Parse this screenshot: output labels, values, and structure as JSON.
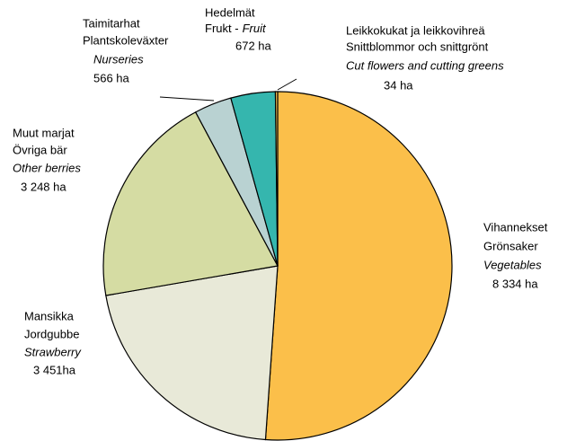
{
  "chart_data": {
    "type": "pie",
    "categories": [
      "Vegetables",
      "Strawberry",
      "Other berries",
      "Nurseries",
      "Fruit",
      "Cut flowers and cutting greens"
    ],
    "finnish": [
      "Vihannekset",
      "Mansikka",
      "Muut marjat",
      "Taimitarhat",
      "Hedelmät",
      "Leikkokukat ja leikkovihreä"
    ],
    "swedish": [
      "Grönsaker",
      "Jordgubbe",
      "Övriga bär",
      "Plantskoleväxter",
      "Frukt -",
      "Snittblommor och snittgrönt"
    ],
    "values": [
      8334,
      3451,
      3248,
      566,
      672,
      34
    ],
    "value_labels": [
      "8 334 ha",
      "3 451ha",
      "3 248 ha",
      "566 ha",
      "672 ha",
      "34 ha"
    ],
    "colors": [
      "#fbbf4a",
      "#e8e9d8",
      "#d5dca3",
      "#b9d2d2",
      "#35b6ae",
      "#f9c24e"
    ]
  }
}
